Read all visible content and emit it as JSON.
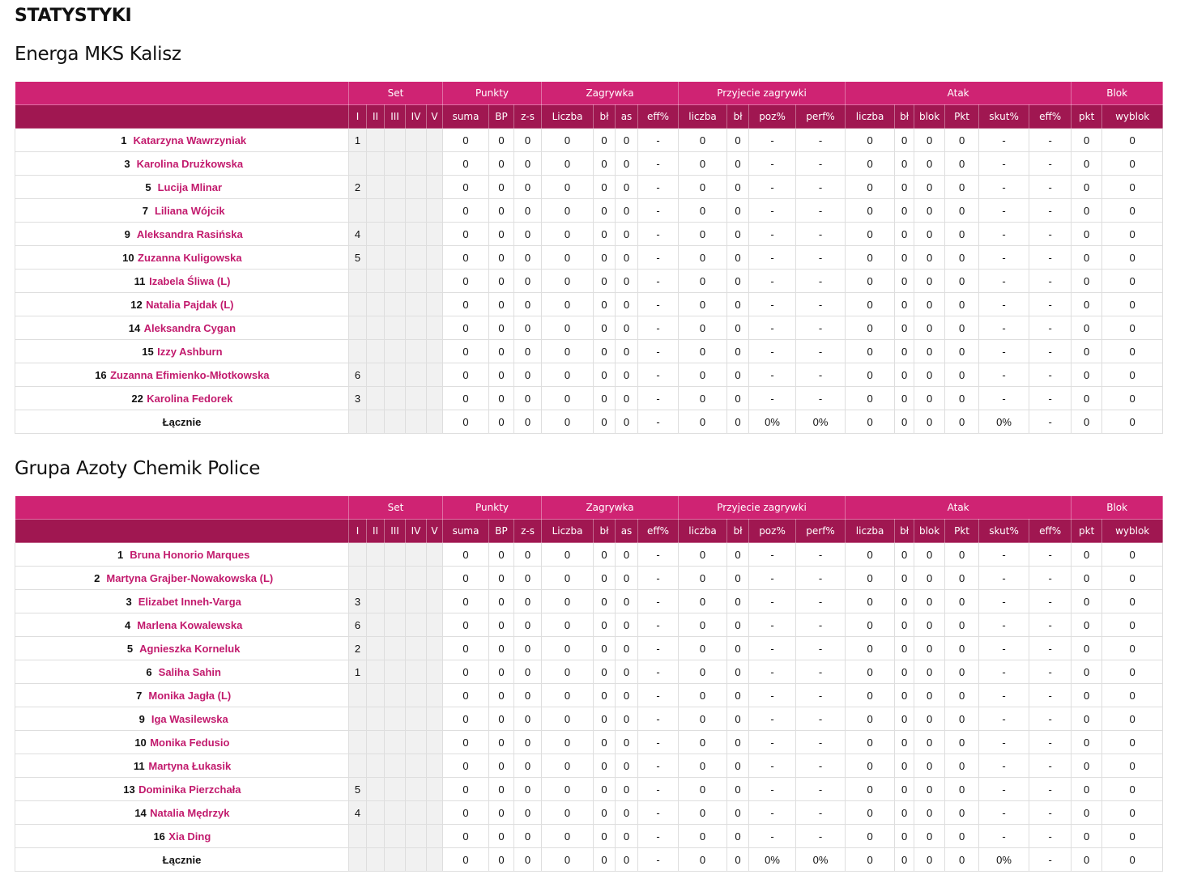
{
  "page": {
    "title": "STATYSTYKI"
  },
  "columns": {
    "groups": [
      "Set",
      "Punkty",
      "Zagrywka",
      "Przyjecie zagrywki",
      "Atak",
      "Blok"
    ],
    "set": [
      "I",
      "II",
      "III",
      "IV",
      "V"
    ],
    "punkty": [
      "suma",
      "BP",
      "z-s"
    ],
    "zagrywka": [
      "Liczba",
      "bł",
      "as",
      "eff%"
    ],
    "przyjecie": [
      "liczba",
      "bł",
      "poz%",
      "perf%"
    ],
    "atak": [
      "liczba",
      "bł",
      "blok",
      "Pkt",
      "skut%",
      "eff%"
    ],
    "blok": [
      "pkt",
      "wyblok"
    ]
  },
  "teams": [
    {
      "name": "Energa MKS Kalisz",
      "players": [
        {
          "number": "1",
          "name": "Katarzyna Wawrzyniak",
          "sets": [
            "1",
            "",
            "",
            "",
            ""
          ],
          "values": [
            "0",
            "0",
            "0",
            "0",
            "0",
            "0",
            "-",
            "0",
            "0",
            "-",
            "-",
            "0",
            "0",
            "0",
            "0",
            "-",
            "-",
            "0",
            "0"
          ]
        },
        {
          "number": "3",
          "name": "Karolina Drużkowska",
          "sets": [
            "",
            "",
            "",
            "",
            ""
          ],
          "values": [
            "0",
            "0",
            "0",
            "0",
            "0",
            "0",
            "-",
            "0",
            "0",
            "-",
            "-",
            "0",
            "0",
            "0",
            "0",
            "-",
            "-",
            "0",
            "0"
          ]
        },
        {
          "number": "5",
          "name": "Lucija Mlinar",
          "sets": [
            "2",
            "",
            "",
            "",
            ""
          ],
          "values": [
            "0",
            "0",
            "0",
            "0",
            "0",
            "0",
            "-",
            "0",
            "0",
            "-",
            "-",
            "0",
            "0",
            "0",
            "0",
            "-",
            "-",
            "0",
            "0"
          ]
        },
        {
          "number": "7",
          "name": "Liliana Wójcik",
          "sets": [
            "",
            "",
            "",
            "",
            ""
          ],
          "values": [
            "0",
            "0",
            "0",
            "0",
            "0",
            "0",
            "-",
            "0",
            "0",
            "-",
            "-",
            "0",
            "0",
            "0",
            "0",
            "-",
            "-",
            "0",
            "0"
          ]
        },
        {
          "number": "9",
          "name": "Aleksandra Rasińska",
          "sets": [
            "4",
            "",
            "",
            "",
            ""
          ],
          "values": [
            "0",
            "0",
            "0",
            "0",
            "0",
            "0",
            "-",
            "0",
            "0",
            "-",
            "-",
            "0",
            "0",
            "0",
            "0",
            "-",
            "-",
            "0",
            "0"
          ]
        },
        {
          "number": "10",
          "name": "Zuzanna Kuligowska",
          "sets": [
            "5",
            "",
            "",
            "",
            ""
          ],
          "values": [
            "0",
            "0",
            "0",
            "0",
            "0",
            "0",
            "-",
            "0",
            "0",
            "-",
            "-",
            "0",
            "0",
            "0",
            "0",
            "-",
            "-",
            "0",
            "0"
          ]
        },
        {
          "number": "11",
          "name": "Izabela Śliwa (L)",
          "sets": [
            "",
            "",
            "",
            "",
            ""
          ],
          "values": [
            "0",
            "0",
            "0",
            "0",
            "0",
            "0",
            "-",
            "0",
            "0",
            "-",
            "-",
            "0",
            "0",
            "0",
            "0",
            "-",
            "-",
            "0",
            "0"
          ]
        },
        {
          "number": "12",
          "name": "Natalia Pajdak (L)",
          "sets": [
            "",
            "",
            "",
            "",
            ""
          ],
          "values": [
            "0",
            "0",
            "0",
            "0",
            "0",
            "0",
            "-",
            "0",
            "0",
            "-",
            "-",
            "0",
            "0",
            "0",
            "0",
            "-",
            "-",
            "0",
            "0"
          ]
        },
        {
          "number": "14",
          "name": "Aleksandra Cygan",
          "sets": [
            "",
            "",
            "",
            "",
            ""
          ],
          "values": [
            "0",
            "0",
            "0",
            "0",
            "0",
            "0",
            "-",
            "0",
            "0",
            "-",
            "-",
            "0",
            "0",
            "0",
            "0",
            "-",
            "-",
            "0",
            "0"
          ]
        },
        {
          "number": "15",
          "name": "Izzy Ashburn",
          "sets": [
            "",
            "",
            "",
            "",
            ""
          ],
          "values": [
            "0",
            "0",
            "0",
            "0",
            "0",
            "0",
            "-",
            "0",
            "0",
            "-",
            "-",
            "0",
            "0",
            "0",
            "0",
            "-",
            "-",
            "0",
            "0"
          ]
        },
        {
          "number": "16",
          "name": "Zuzanna Efimienko-Młotkowska",
          "sets": [
            "6",
            "",
            "",
            "",
            ""
          ],
          "values": [
            "0",
            "0",
            "0",
            "0",
            "0",
            "0",
            "-",
            "0",
            "0",
            "-",
            "-",
            "0",
            "0",
            "0",
            "0",
            "-",
            "-",
            "0",
            "0"
          ]
        },
        {
          "number": "22",
          "name": "Karolina Fedorek",
          "sets": [
            "3",
            "",
            "",
            "",
            ""
          ],
          "values": [
            "0",
            "0",
            "0",
            "0",
            "0",
            "0",
            "-",
            "0",
            "0",
            "-",
            "-",
            "0",
            "0",
            "0",
            "0",
            "-",
            "-",
            "0",
            "0"
          ]
        }
      ],
      "total": {
        "label": "Łącznie",
        "values": [
          "0",
          "0",
          "0",
          "0",
          "0",
          "0",
          "-",
          "0",
          "0",
          "0%",
          "0%",
          "0",
          "0",
          "0",
          "0",
          "0%",
          "-",
          "0",
          "0"
        ]
      }
    },
    {
      "name": "Grupa Azoty Chemik Police",
      "players": [
        {
          "number": "1",
          "name": "Bruna Honorio Marques",
          "sets": [
            "",
            "",
            "",
            "",
            ""
          ],
          "values": [
            "0",
            "0",
            "0",
            "0",
            "0",
            "0",
            "-",
            "0",
            "0",
            "-",
            "-",
            "0",
            "0",
            "0",
            "0",
            "-",
            "-",
            "0",
            "0"
          ]
        },
        {
          "number": "2",
          "name": "Martyna Grajber-Nowakowska (L)",
          "sets": [
            "",
            "",
            "",
            "",
            ""
          ],
          "values": [
            "0",
            "0",
            "0",
            "0",
            "0",
            "0",
            "-",
            "0",
            "0",
            "-",
            "-",
            "0",
            "0",
            "0",
            "0",
            "-",
            "-",
            "0",
            "0"
          ]
        },
        {
          "number": "3",
          "name": "Elizabet Inneh-Varga",
          "sets": [
            "3",
            "",
            "",
            "",
            ""
          ],
          "values": [
            "0",
            "0",
            "0",
            "0",
            "0",
            "0",
            "-",
            "0",
            "0",
            "-",
            "-",
            "0",
            "0",
            "0",
            "0",
            "-",
            "-",
            "0",
            "0"
          ]
        },
        {
          "number": "4",
          "name": "Marlena Kowalewska",
          "sets": [
            "6",
            "",
            "",
            "",
            ""
          ],
          "values": [
            "0",
            "0",
            "0",
            "0",
            "0",
            "0",
            "-",
            "0",
            "0",
            "-",
            "-",
            "0",
            "0",
            "0",
            "0",
            "-",
            "-",
            "0",
            "0"
          ]
        },
        {
          "number": "5",
          "name": "Agnieszka Korneluk",
          "sets": [
            "2",
            "",
            "",
            "",
            ""
          ],
          "values": [
            "0",
            "0",
            "0",
            "0",
            "0",
            "0",
            "-",
            "0",
            "0",
            "-",
            "-",
            "0",
            "0",
            "0",
            "0",
            "-",
            "-",
            "0",
            "0"
          ]
        },
        {
          "number": "6",
          "name": "Saliha Sahin",
          "sets": [
            "1",
            "",
            "",
            "",
            ""
          ],
          "values": [
            "0",
            "0",
            "0",
            "0",
            "0",
            "0",
            "-",
            "0",
            "0",
            "-",
            "-",
            "0",
            "0",
            "0",
            "0",
            "-",
            "-",
            "0",
            "0"
          ]
        },
        {
          "number": "7",
          "name": "Monika Jagła (L)",
          "sets": [
            "",
            "",
            "",
            "",
            ""
          ],
          "values": [
            "0",
            "0",
            "0",
            "0",
            "0",
            "0",
            "-",
            "0",
            "0",
            "-",
            "-",
            "0",
            "0",
            "0",
            "0",
            "-",
            "-",
            "0",
            "0"
          ]
        },
        {
          "number": "9",
          "name": "Iga Wasilewska",
          "sets": [
            "",
            "",
            "",
            "",
            ""
          ],
          "values": [
            "0",
            "0",
            "0",
            "0",
            "0",
            "0",
            "-",
            "0",
            "0",
            "-",
            "-",
            "0",
            "0",
            "0",
            "0",
            "-",
            "-",
            "0",
            "0"
          ]
        },
        {
          "number": "10",
          "name": "Monika Fedusio",
          "sets": [
            "",
            "",
            "",
            "",
            ""
          ],
          "values": [
            "0",
            "0",
            "0",
            "0",
            "0",
            "0",
            "-",
            "0",
            "0",
            "-",
            "-",
            "0",
            "0",
            "0",
            "0",
            "-",
            "-",
            "0",
            "0"
          ]
        },
        {
          "number": "11",
          "name": "Martyna Łukasik",
          "sets": [
            "",
            "",
            "",
            "",
            ""
          ],
          "values": [
            "0",
            "0",
            "0",
            "0",
            "0",
            "0",
            "-",
            "0",
            "0",
            "-",
            "-",
            "0",
            "0",
            "0",
            "0",
            "-",
            "-",
            "0",
            "0"
          ]
        },
        {
          "number": "13",
          "name": "Dominika Pierzchała",
          "sets": [
            "5",
            "",
            "",
            "",
            ""
          ],
          "values": [
            "0",
            "0",
            "0",
            "0",
            "0",
            "0",
            "-",
            "0",
            "0",
            "-",
            "-",
            "0",
            "0",
            "0",
            "0",
            "-",
            "-",
            "0",
            "0"
          ]
        },
        {
          "number": "14",
          "name": "Natalia Mędrzyk",
          "sets": [
            "4",
            "",
            "",
            "",
            ""
          ],
          "values": [
            "0",
            "0",
            "0",
            "0",
            "0",
            "0",
            "-",
            "0",
            "0",
            "-",
            "-",
            "0",
            "0",
            "0",
            "0",
            "-",
            "-",
            "0",
            "0"
          ]
        },
        {
          "number": "16",
          "name": "Xia Ding",
          "sets": [
            "",
            "",
            "",
            "",
            ""
          ],
          "values": [
            "0",
            "0",
            "0",
            "0",
            "0",
            "0",
            "-",
            "0",
            "0",
            "-",
            "-",
            "0",
            "0",
            "0",
            "0",
            "-",
            "-",
            "0",
            "0"
          ]
        }
      ],
      "total": {
        "label": "Łącznie",
        "values": [
          "0",
          "0",
          "0",
          "0",
          "0",
          "0",
          "-",
          "0",
          "0",
          "0%",
          "0%",
          "0",
          "0",
          "0",
          "0",
          "0%",
          "-",
          "0",
          "0"
        ]
      }
    }
  ],
  "colors": {
    "header_primary": "#cf2373",
    "header_secondary": "#a01751",
    "player_link": "#c21a6d",
    "set_cell_bg": "#f1f1f1"
  }
}
